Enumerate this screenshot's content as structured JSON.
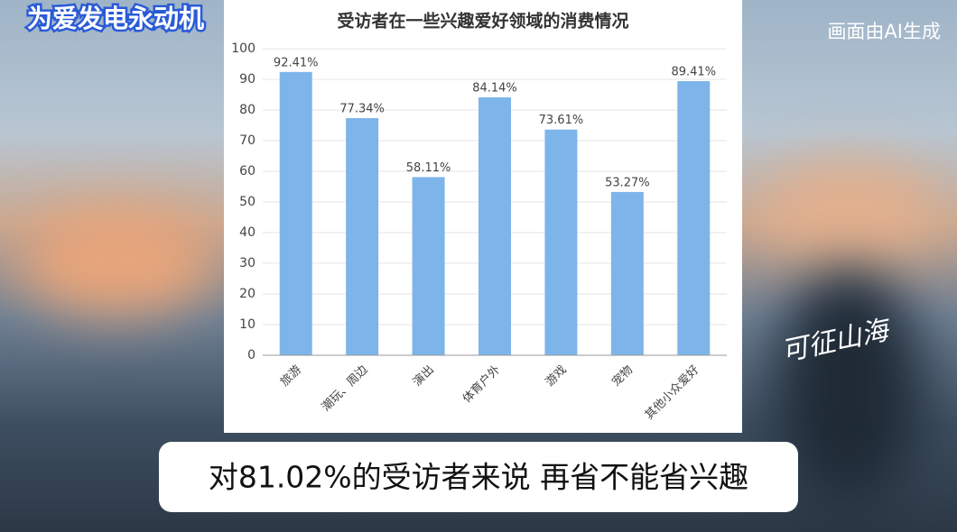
{
  "channel": "为爱发电永动机",
  "ai_notice": "画面由AI生成",
  "watermark": "可征山海",
  "caption": "对81.02%的受访者来说 再省不能省兴趣",
  "chart_data": {
    "type": "bar",
    "title": "受访者在一些兴趣爱好领域的消费情况",
    "categories": [
      "旅游",
      "潮玩、周边",
      "演出",
      "体育户外",
      "游戏",
      "宠物",
      "其他小众爱好"
    ],
    "values": [
      92.41,
      77.34,
      58.11,
      84.14,
      73.61,
      53.27,
      89.41
    ],
    "value_labels": [
      "92.41%",
      "77.34%",
      "58.11%",
      "84.14%",
      "73.61%",
      "53.27%",
      "89.41%"
    ],
    "color": "#7db5ea",
    "ylim": [
      0,
      100
    ],
    "yticks": [
      0,
      10,
      20,
      30,
      40,
      50,
      60,
      70,
      80,
      90,
      100
    ],
    "grid": true
  }
}
